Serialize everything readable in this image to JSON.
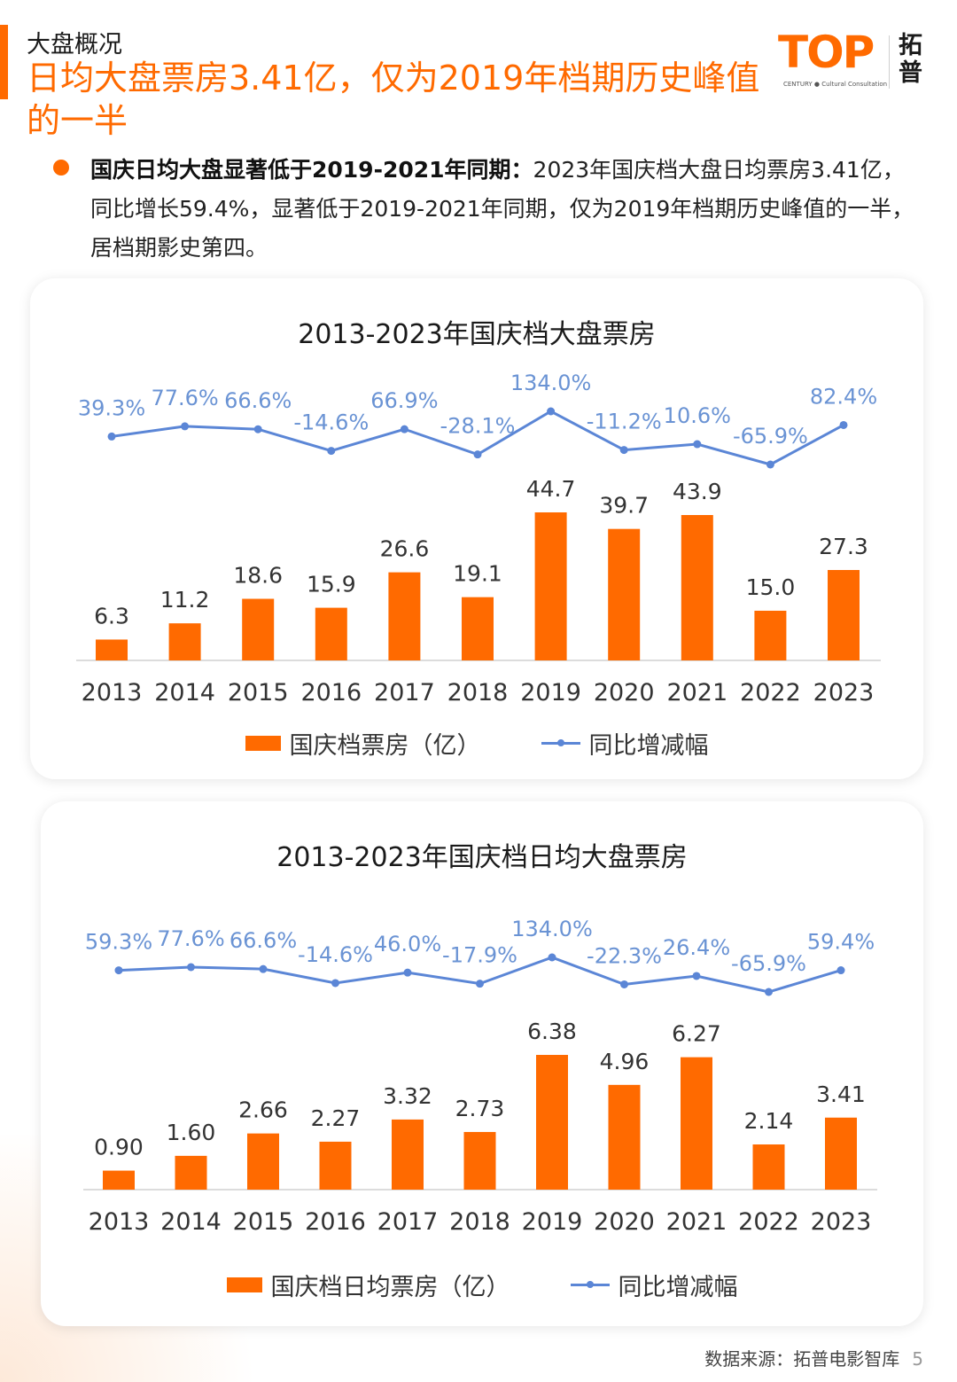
{
  "header": {
    "section": "大盘概况",
    "headline": "日均大盘票房3.41亿，仅为2019年档期历史峰值的一半"
  },
  "logo": {
    "word": "TOP",
    "sub": "CENTURY ● Cultural Consultation",
    "cn_line1": "拓",
    "cn_line2": "普"
  },
  "bullet": {
    "bold": "国庆日均大盘显著低于2019-2021年同期：",
    "text": "2023年国庆档大盘日均票房3.41亿，同比增长59.4%，显著低于2019-2021年同期，仅为2019年档期历史峰值的一半，居档期影史第四。"
  },
  "colors": {
    "accent": "#ff6a00",
    "line": "#5b86d6",
    "pct_label": "#6a93d4"
  },
  "chart_data": [
    {
      "type": "bar",
      "title": "2013-2023年国庆档大盘票房",
      "categories": [
        "2013",
        "2014",
        "2015",
        "2016",
        "2017",
        "2018",
        "2019",
        "2020",
        "2021",
        "2022",
        "2023"
      ],
      "series": [
        {
          "name": "国庆档票房（亿）",
          "type": "bar",
          "values": [
            6.3,
            11.2,
            18.6,
            15.9,
            26.6,
            19.1,
            44.7,
            39.7,
            43.9,
            15.0,
            27.3
          ],
          "labels": [
            "6.3",
            "11.2",
            "18.6",
            "15.9",
            "26.6",
            "19.1",
            "44.7",
            "39.7",
            "43.9",
            "15.0",
            "27.3"
          ]
        },
        {
          "name": "同比增减幅",
          "type": "line",
          "values": [
            39.3,
            77.6,
            66.6,
            -14.6,
            66.9,
            -28.1,
            134.0,
            -11.2,
            10.6,
            -65.9,
            82.4
          ],
          "labels": [
            "39.3%",
            "77.6%",
            "66.6%",
            "-14.6%",
            "66.9%",
            "-28.1%",
            "134.0%",
            "-11.2%",
            "10.6%",
            "-65.9%",
            "82.4%"
          ]
        }
      ],
      "legend_bar": "国庆档票房（亿）",
      "legend_line": "同比增减幅"
    },
    {
      "type": "bar",
      "title": "2013-2023年国庆档日均大盘票房",
      "categories": [
        "2013",
        "2014",
        "2015",
        "2016",
        "2017",
        "2018",
        "2019",
        "2020",
        "2021",
        "2022",
        "2023"
      ],
      "series": [
        {
          "name": "国庆档日均票房（亿）",
          "type": "bar",
          "values": [
            0.9,
            1.6,
            2.66,
            2.27,
            3.32,
            2.73,
            6.38,
            4.96,
            6.27,
            2.14,
            3.41
          ],
          "labels": [
            "0.90",
            "1.60",
            "2.66",
            "2.27",
            "3.32",
            "2.73",
            "6.38",
            "4.96",
            "6.27",
            "2.14",
            "3.41"
          ]
        },
        {
          "name": "同比增减幅",
          "type": "line",
          "values": [
            59.3,
            77.6,
            66.6,
            -14.6,
            46.0,
            -17.9,
            134.0,
            -22.3,
            26.4,
            -65.9,
            59.4
          ],
          "labels": [
            "59.3%",
            "77.6%",
            "66.6%",
            "-14.6%",
            "46.0%",
            "-17.9%",
            "134.0%",
            "-22.3%",
            "26.4%",
            "-65.9%",
            "59.4%"
          ]
        }
      ],
      "legend_bar": "国庆档日均票房（亿）",
      "legend_line": "同比增减幅"
    }
  ],
  "footer": {
    "source": "数据来源：拓普电影智库",
    "page": "5"
  }
}
